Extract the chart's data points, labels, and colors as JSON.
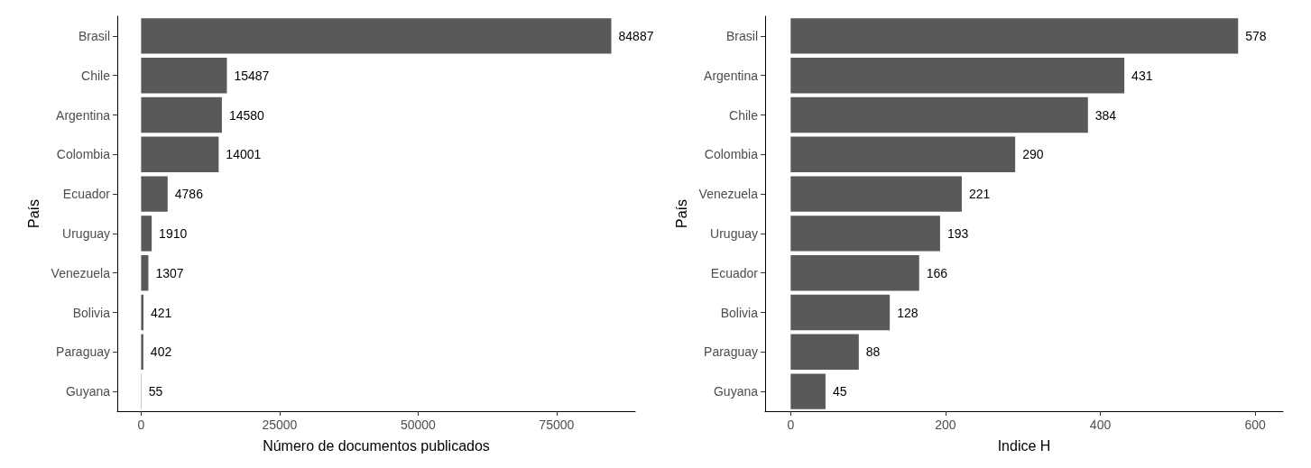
{
  "chart_data": [
    {
      "type": "bar",
      "orientation": "horizontal",
      "xlabel": "Número de documentos publicados",
      "ylabel": "País",
      "categories": [
        "Brasil",
        "Chile",
        "Argentina",
        "Colombia",
        "Ecuador",
        "Uruguay",
        "Venezuela",
        "Bolivia",
        "Paraguay",
        "Guyana"
      ],
      "values": [
        84887,
        15487,
        14580,
        14001,
        4786,
        1910,
        1307,
        421,
        402,
        55
      ],
      "color": "#595959",
      "data_labels": true,
      "xlim": [
        -4300,
        89200
      ],
      "xticks": [
        0,
        25000,
        50000,
        75000
      ],
      "grid": false
    },
    {
      "type": "bar",
      "orientation": "horizontal",
      "xlabel": "Indice H",
      "ylabel": "País",
      "categories": [
        "Brasil",
        "Argentina",
        "Chile",
        "Colombia",
        "Venezuela",
        "Uruguay",
        "Ecuador",
        "Bolivia",
        "Paraguay",
        "Guyana"
      ],
      "values": [
        578,
        431,
        384,
        290,
        221,
        193,
        166,
        128,
        88,
        45
      ],
      "color": "#595959",
      "data_labels": true,
      "xlim": [
        -33,
        636
      ],
      "xticks": [
        0,
        200,
        400,
        600
      ],
      "grid": false
    }
  ]
}
